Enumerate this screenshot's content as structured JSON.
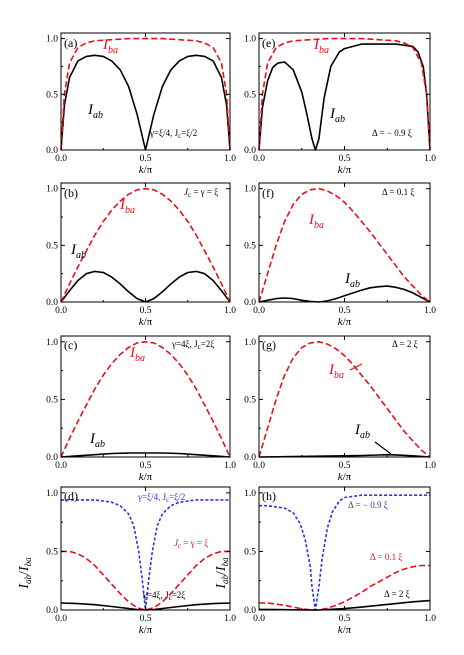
{
  "chart_data": [
    {
      "type": "line",
      "panel_label": "(a)",
      "xlabel": "k/π",
      "ylabel": "",
      "xlim": [
        0,
        1
      ],
      "ylim": [
        0,
        1.05
      ],
      "xticks": [
        "0.0",
        "0.5",
        "1.0"
      ],
      "yticks": [
        "0.0",
        "0.5",
        "1.0"
      ],
      "series": [
        {
          "name": "I_ab",
          "style": "solid",
          "color": "#000000",
          "x": [
            0,
            0.02,
            0.05,
            0.1,
            0.15,
            0.2,
            0.25,
            0.3,
            0.35,
            0.4,
            0.45,
            0.5,
            0.55,
            0.6,
            0.65,
            0.7,
            0.75,
            0.8,
            0.85,
            0.9,
            0.95,
            0.98,
            1
          ],
          "y": [
            0,
            0.4,
            0.65,
            0.8,
            0.84,
            0.85,
            0.84,
            0.8,
            0.72,
            0.57,
            0.32,
            0,
            0.32,
            0.57,
            0.72,
            0.8,
            0.84,
            0.85,
            0.84,
            0.8,
            0.65,
            0.4,
            0
          ]
        },
        {
          "name": "I_ba",
          "style": "dashed",
          "color": "#e8101a",
          "x": [
            0,
            0.02,
            0.05,
            0.1,
            0.15,
            0.2,
            0.3,
            0.4,
            0.5,
            0.6,
            0.7,
            0.8,
            0.85,
            0.9,
            0.95,
            0.98,
            1
          ],
          "y": [
            0,
            0.5,
            0.78,
            0.92,
            0.96,
            0.98,
            0.99,
            1.0,
            1.0,
            1.0,
            0.99,
            0.98,
            0.96,
            0.92,
            0.78,
            0.5,
            0
          ]
        }
      ],
      "annotations": [
        "γ=ξ/4, J_c=ξ/2"
      ]
    },
    {
      "type": "line",
      "panel_label": "(b)",
      "xlabel": "k/π",
      "ylabel": "",
      "xlim": [
        0,
        1
      ],
      "ylim": [
        0,
        1.05
      ],
      "xticks": [
        "0.0",
        "0.5",
        "1.0"
      ],
      "yticks": [
        "0.0",
        "0.5",
        "1.0"
      ],
      "series": [
        {
          "name": "I_ab",
          "style": "solid",
          "color": "#000000",
          "x": [
            0,
            0.05,
            0.1,
            0.15,
            0.2,
            0.25,
            0.3,
            0.35,
            0.4,
            0.45,
            0.5,
            0.55,
            0.6,
            0.65,
            0.7,
            0.75,
            0.8,
            0.85,
            0.9,
            0.95,
            1
          ],
          "y": [
            0,
            0.1,
            0.19,
            0.25,
            0.27,
            0.26,
            0.22,
            0.16,
            0.09,
            0.03,
            0,
            0.03,
            0.09,
            0.16,
            0.22,
            0.26,
            0.27,
            0.25,
            0.19,
            0.1,
            0
          ]
        },
        {
          "name": "I_ba",
          "style": "dashed",
          "color": "#e8101a",
          "x": [
            0,
            0.05,
            0.1,
            0.15,
            0.2,
            0.25,
            0.3,
            0.35,
            0.4,
            0.45,
            0.5,
            0.55,
            0.6,
            0.65,
            0.7,
            0.75,
            0.8,
            0.85,
            0.9,
            0.95,
            1
          ],
          "y": [
            0,
            0.16,
            0.31,
            0.45,
            0.59,
            0.71,
            0.81,
            0.89,
            0.95,
            0.99,
            1.0,
            0.99,
            0.95,
            0.89,
            0.81,
            0.71,
            0.59,
            0.45,
            0.31,
            0.16,
            0
          ]
        }
      ],
      "annotations": [
        "J_c = γ = ξ"
      ]
    },
    {
      "type": "line",
      "panel_label": "(c)",
      "xlabel": "k/π",
      "ylabel": "",
      "xlim": [
        0,
        1
      ],
      "ylim": [
        0,
        1.05
      ],
      "xticks": [
        "0.0",
        "0.5",
        "1.0"
      ],
      "yticks": [
        "0.0",
        "0.5",
        "1.0"
      ],
      "series": [
        {
          "name": "I_ab",
          "style": "solid",
          "color": "#000000",
          "x": [
            0,
            0.1,
            0.2,
            0.3,
            0.4,
            0.5,
            0.6,
            0.7,
            0.8,
            0.9,
            1
          ],
          "y": [
            0,
            0.01,
            0.02,
            0.03,
            0.035,
            0.035,
            0.035,
            0.03,
            0.02,
            0.01,
            0
          ]
        },
        {
          "name": "I_ba",
          "style": "dashed",
          "color": "#e8101a",
          "x": [
            0,
            0.05,
            0.1,
            0.15,
            0.2,
            0.25,
            0.3,
            0.35,
            0.4,
            0.45,
            0.5,
            0.55,
            0.6,
            0.65,
            0.7,
            0.75,
            0.8,
            0.85,
            0.9,
            0.95,
            1
          ],
          "y": [
            0,
            0.16,
            0.31,
            0.45,
            0.59,
            0.71,
            0.81,
            0.89,
            0.95,
            0.99,
            1.0,
            0.99,
            0.95,
            0.89,
            0.81,
            0.71,
            0.59,
            0.45,
            0.31,
            0.16,
            0
          ]
        }
      ],
      "annotations": [
        "γ=4ξ, J_c=2ξ"
      ]
    },
    {
      "type": "line",
      "panel_label": "(d)",
      "xlabel": "k/π",
      "ylabel": "I_ab/I_ba",
      "xlim": [
        0,
        1
      ],
      "ylim": [
        0,
        1.05
      ],
      "xticks": [
        "0.0",
        "0.5",
        "1.0"
      ],
      "yticks": [
        "0.0",
        "0.5",
        "1.0"
      ],
      "series": [
        {
          "name": "γ=ξ/4, J_c=ξ/2",
          "style": "short-dashed",
          "color": "#2b33e0",
          "x": [
            0,
            0.1,
            0.2,
            0.3,
            0.35,
            0.4,
            0.43,
            0.46,
            0.48,
            0.5,
            0.52,
            0.54,
            0.57,
            0.6,
            0.65,
            0.7,
            0.8,
            0.9,
            1
          ],
          "y": [
            0.94,
            0.94,
            0.94,
            0.92,
            0.89,
            0.82,
            0.72,
            0.5,
            0.27,
            0,
            0.27,
            0.5,
            0.72,
            0.82,
            0.89,
            0.92,
            0.94,
            0.94,
            0.94
          ]
        },
        {
          "name": "J_c = γ = ξ",
          "style": "dashed",
          "color": "#e8101a",
          "x": [
            0,
            0.05,
            0.1,
            0.15,
            0.2,
            0.25,
            0.3,
            0.35,
            0.4,
            0.45,
            0.5,
            0.55,
            0.6,
            0.65,
            0.7,
            0.75,
            0.8,
            0.85,
            0.9,
            0.95,
            1
          ],
          "y": [
            0.5,
            0.5,
            0.48,
            0.44,
            0.38,
            0.3,
            0.22,
            0.14,
            0.07,
            0.02,
            0,
            0.02,
            0.07,
            0.14,
            0.22,
            0.3,
            0.38,
            0.44,
            0.48,
            0.5,
            0.5
          ]
        },
        {
          "name": "γ=4ξ, J_c=2ξ",
          "style": "solid",
          "color": "#000000",
          "x": [
            0,
            0.1,
            0.2,
            0.3,
            0.4,
            0.45,
            0.5,
            0.55,
            0.6,
            0.7,
            0.8,
            0.9,
            1
          ],
          "y": [
            0.06,
            0.055,
            0.045,
            0.03,
            0.013,
            0.004,
            0,
            0.004,
            0.013,
            0.03,
            0.045,
            0.055,
            0.06
          ]
        }
      ]
    },
    {
      "type": "line",
      "panel_label": "(e)",
      "xlabel": "k/π",
      "ylabel": "",
      "xlim": [
        0,
        1
      ],
      "ylim": [
        0,
        1.05
      ],
      "xticks": [
        "0.0",
        "0.5",
        "1.0"
      ],
      "yticks": [
        "0.0",
        "0.5",
        "1.0"
      ],
      "series": [
        {
          "name": "I_ab",
          "style": "solid",
          "color": "#000000",
          "x": [
            0,
            0.02,
            0.05,
            0.08,
            0.11,
            0.15,
            0.2,
            0.25,
            0.28,
            0.31,
            0.33,
            0.35,
            0.38,
            0.42,
            0.47,
            0.5,
            0.6,
            0.7,
            0.8,
            0.9,
            0.93,
            0.96,
            0.98,
            1
          ],
          "y": [
            0,
            0.38,
            0.62,
            0.74,
            0.78,
            0.79,
            0.72,
            0.52,
            0.32,
            0.1,
            0,
            0.1,
            0.46,
            0.75,
            0.88,
            0.91,
            0.95,
            0.95,
            0.95,
            0.93,
            0.88,
            0.75,
            0.5,
            0
          ]
        },
        {
          "name": "I_ba",
          "style": "dashed",
          "color": "#e8101a",
          "x": [
            0,
            0.02,
            0.05,
            0.1,
            0.15,
            0.2,
            0.3,
            0.4,
            0.5,
            0.6,
            0.7,
            0.8,
            0.85,
            0.9,
            0.95,
            0.98,
            1
          ],
          "y": [
            0,
            0.5,
            0.78,
            0.92,
            0.96,
            0.98,
            0.99,
            1.0,
            1.0,
            1.0,
            0.99,
            0.98,
            0.96,
            0.92,
            0.78,
            0.5,
            0
          ]
        }
      ],
      "annotations": [
        "Δ = − 0.9 ξ"
      ]
    },
    {
      "type": "line",
      "panel_label": "(f)",
      "xlabel": "k/π",
      "ylabel": "",
      "xlim": [
        0,
        1
      ],
      "ylim": [
        0,
        1.05
      ],
      "xticks": [
        "0.0",
        "0.5",
        "1.0"
      ],
      "yticks": [
        "0.0",
        "0.5",
        "1.0"
      ],
      "series": [
        {
          "name": "I_ab",
          "style": "solid",
          "color": "#000000",
          "x": [
            0,
            0.05,
            0.1,
            0.15,
            0.2,
            0.25,
            0.3,
            0.35,
            0.4,
            0.45,
            0.5,
            0.55,
            0.6,
            0.65,
            0.7,
            0.75,
            0.8,
            0.85,
            0.9,
            0.95,
            1
          ],
          "y": [
            0,
            0.015,
            0.03,
            0.035,
            0.03,
            0.015,
            0.005,
            0,
            0.01,
            0.03,
            0.055,
            0.08,
            0.105,
            0.125,
            0.135,
            0.14,
            0.13,
            0.11,
            0.08,
            0.04,
            0
          ]
        },
        {
          "name": "I_ba",
          "style": "dashed",
          "color": "#e8101a",
          "x": [
            0,
            0.05,
            0.1,
            0.15,
            0.2,
            0.25,
            0.3,
            0.35,
            0.4,
            0.45,
            0.5,
            0.55,
            0.6,
            0.65,
            0.7,
            0.75,
            0.8,
            0.85,
            0.9,
            0.95,
            1
          ],
          "y": [
            0,
            0.25,
            0.5,
            0.71,
            0.86,
            0.95,
            0.99,
            1.0,
            0.98,
            0.94,
            0.88,
            0.8,
            0.71,
            0.62,
            0.52,
            0.42,
            0.32,
            0.22,
            0.14,
            0.06,
            0
          ]
        }
      ],
      "annotations": [
        "Δ = 0.1 ξ"
      ]
    },
    {
      "type": "line",
      "panel_label": "(g)",
      "xlabel": "k/π",
      "ylabel": "",
      "xlim": [
        0,
        1
      ],
      "ylim": [
        0,
        1.05
      ],
      "xticks": [
        "0.0",
        "0.5",
        "1.0"
      ],
      "yticks": [
        "0.0",
        "0.5",
        "1.0"
      ],
      "series": [
        {
          "name": "I_ab",
          "style": "solid",
          "color": "#000000",
          "x": [
            0,
            0.1,
            0.2,
            0.3,
            0.4,
            0.5,
            0.6,
            0.7,
            0.75,
            0.8,
            0.9,
            1
          ],
          "y": [
            0,
            0.002,
            0.004,
            0.006,
            0.008,
            0.01,
            0.013,
            0.017,
            0.02,
            0.018,
            0.01,
            0
          ]
        },
        {
          "name": "I_ba",
          "style": "dashed",
          "color": "#e8101a",
          "x": [
            0,
            0.05,
            0.1,
            0.15,
            0.2,
            0.25,
            0.3,
            0.35,
            0.4,
            0.45,
            0.5,
            0.55,
            0.6,
            0.65,
            0.7,
            0.75,
            0.8,
            0.85,
            0.9,
            0.95,
            1
          ],
          "y": [
            0,
            0.25,
            0.5,
            0.71,
            0.86,
            0.95,
            0.99,
            1.0,
            0.98,
            0.94,
            0.88,
            0.8,
            0.71,
            0.62,
            0.52,
            0.42,
            0.32,
            0.22,
            0.14,
            0.06,
            0
          ]
        }
      ],
      "annotations": [
        "Δ = 2 ξ"
      ]
    },
    {
      "type": "line",
      "panel_label": "(h)",
      "xlabel": "k/π",
      "ylabel": "I_ab/I_ba",
      "xlim": [
        0,
        1
      ],
      "ylim": [
        0,
        1.05
      ],
      "xticks": [
        "0.0",
        "0.5",
        "1.0"
      ],
      "yticks": [
        "0.0",
        "0.5",
        "1.0"
      ],
      "series": [
        {
          "name": "Δ = − 0.9 ξ",
          "style": "short-dashed",
          "color": "#2b33e0",
          "x": [
            0,
            0.05,
            0.1,
            0.15,
            0.2,
            0.24,
            0.27,
            0.3,
            0.31,
            0.33,
            0.35,
            0.37,
            0.4,
            0.43,
            0.47,
            0.5,
            0.6,
            0.7,
            0.8,
            0.9,
            1
          ],
          "y": [
            0.89,
            0.89,
            0.88,
            0.87,
            0.83,
            0.74,
            0.6,
            0.37,
            0.2,
            0,
            0.2,
            0.45,
            0.7,
            0.84,
            0.93,
            0.96,
            0.98,
            0.98,
            0.98,
            0.98,
            0.98
          ]
        },
        {
          "name": "Δ = 0.1 ξ",
          "style": "dashed",
          "color": "#e8101a",
          "x": [
            0,
            0.05,
            0.1,
            0.15,
            0.2,
            0.25,
            0.3,
            0.35,
            0.4,
            0.45,
            0.5,
            0.55,
            0.6,
            0.65,
            0.7,
            0.75,
            0.8,
            0.85,
            0.9,
            0.95,
            1
          ],
          "y": [
            0.06,
            0.06,
            0.05,
            0.04,
            0.025,
            0.01,
            0.002,
            0,
            0.015,
            0.04,
            0.07,
            0.11,
            0.15,
            0.2,
            0.24,
            0.28,
            0.32,
            0.35,
            0.37,
            0.38,
            0.38
          ]
        },
        {
          "name": "Δ = 2 ξ",
          "style": "solid",
          "color": "#000000",
          "x": [
            0,
            0.1,
            0.2,
            0.3,
            0.35,
            0.4,
            0.5,
            0.6,
            0.7,
            0.8,
            0.9,
            1
          ],
          "y": [
            0.005,
            0.004,
            0.002,
            0.0005,
            0,
            0.003,
            0.012,
            0.025,
            0.04,
            0.055,
            0.07,
            0.08
          ]
        }
      ]
    }
  ],
  "labels": {
    "a": {
      "panel": "(a)",
      "Iab_main": "I",
      "Iab_sub": "ab",
      "Iba_main": "I",
      "Iba_sub": "ba",
      "param": "γ=ξ/4, J",
      "param_sub": "c",
      "param_tail": "=ξ/2"
    },
    "b": {
      "panel": "(b)",
      "Iab_main": "I",
      "Iab_sub": "ab",
      "Iba_main": "I",
      "Iba_sub": "ba",
      "param": "J",
      "param_sub": "c",
      "param_tail": " = γ = ξ"
    },
    "c": {
      "panel": "(c)",
      "Iab_main": "I",
      "Iab_sub": "ab",
      "Iba_main": "I",
      "Iba_sub": "ba",
      "param": "γ=4ξ, J",
      "param_sub": "c",
      "param_tail": "=2ξ"
    },
    "d": {
      "panel": "(d)",
      "blue": "γ=ξ/4, J",
      "blue_sub": "c",
      "blue_tail": "=ξ/2",
      "red": "J",
      "red_sub": "c",
      "red_tail": " = γ = ξ",
      "black": "γ=4ξ, J",
      "black_sub": "c",
      "black_tail": "=2ξ",
      "ylabel_a": "I",
      "ylabel_a_sub": "ab",
      "ylabel_slash": "/",
      "ylabel_b": "I",
      "ylabel_b_sub": "ba"
    },
    "e": {
      "panel": "(e)",
      "Iab_main": "I",
      "Iab_sub": "ab",
      "Iba_main": "I",
      "Iba_sub": "ba",
      "param": "Δ = − 0.9 ξ"
    },
    "f": {
      "panel": "(f)",
      "Iab_main": "I",
      "Iab_sub": "ab",
      "Iba_main": "I",
      "Iba_sub": "ba",
      "param": "Δ = 0.1 ξ"
    },
    "g": {
      "panel": "(g)",
      "Iab_main": "I",
      "Iab_sub": "ab",
      "Iba_main": "I",
      "Iba_sub": "ba",
      "param": "Δ = 2 ξ"
    },
    "h": {
      "panel": "(h)",
      "blue": "Δ = − 0.9 ξ",
      "red": "Δ = 0.1 ξ",
      "black": "Δ = 2 ξ",
      "ylabel_a": "I",
      "ylabel_a_sub": "ab",
      "ylabel_slash": "/",
      "ylabel_b": "I",
      "ylabel_b_sub": "ba"
    },
    "xlabel_k": "k",
    "xlabel_pi": "/π"
  }
}
